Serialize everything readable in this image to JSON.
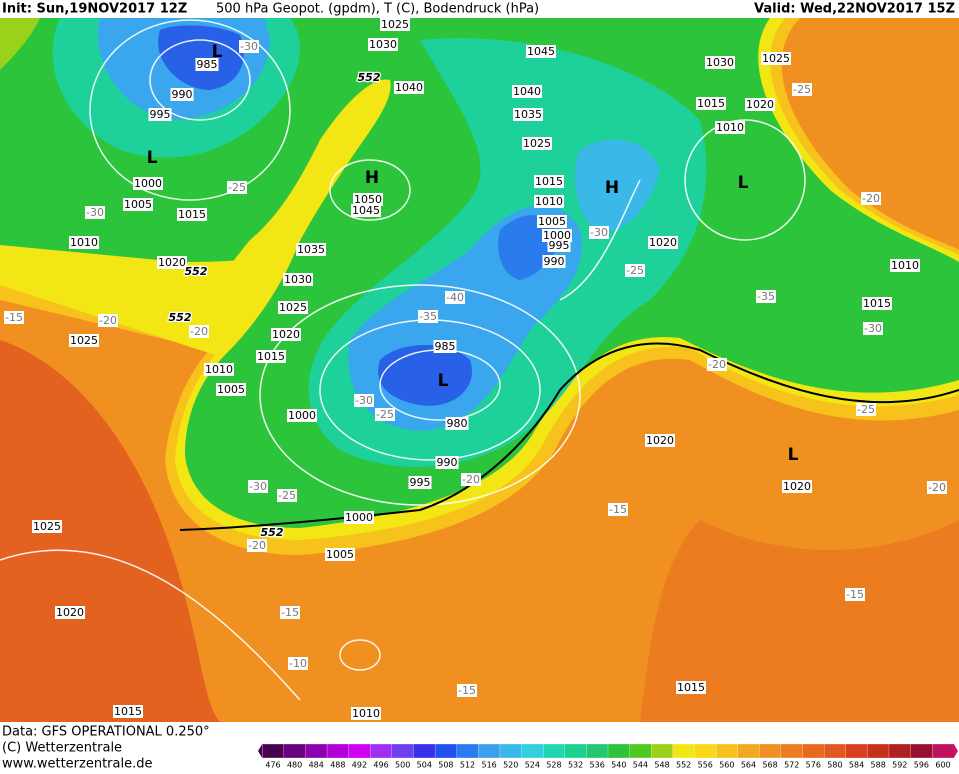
{
  "header": {
    "init": "Init: Sun,19NOV2017 12Z",
    "title": "500 hPa Geopot. (gpdm), T (C), Bodendruck (hPa)",
    "valid": "Valid: Wed,22NOV2017 15Z"
  },
  "map": {
    "isobar_labels": [
      1025,
      1030,
      985,
      990,
      995,
      1000,
      1005,
      1015,
      1010,
      1020,
      1025,
      1035,
      1030,
      1025,
      1020,
      1015,
      1010,
      1005,
      1000,
      1050,
      1045,
      1040,
      1045,
      1040,
      1035,
      1025,
      1030,
      1025,
      1015,
      1020,
      1010,
      1015,
      1010,
      1005,
      1000,
      995,
      990,
      1020,
      1010,
      1015,
      985,
      980,
      990,
      995,
      1000,
      1005,
      1020,
      1020,
      1025,
      1020,
      1015,
      1010,
      1015
    ],
    "geopotential_labels": [
      552,
      552,
      552,
      552
    ],
    "temperature_labels": [
      -30,
      -25,
      -25,
      -30,
      -20,
      -30,
      -25,
      -40,
      -35,
      -35,
      -30,
      -20,
      -15,
      -20,
      -20,
      -25,
      -30,
      -25,
      -20,
      -30,
      -25,
      -20,
      -15,
      -20,
      -15,
      -15,
      -10,
      -15
    ],
    "pressure_centers": [
      "L",
      "L",
      "H",
      "H",
      "L",
      "L",
      "L"
    ]
  },
  "footer": {
    "data": "Data: GFS OPERATIONAL 0.250°",
    "copyright": "(C) Wetterzentrale",
    "url": "www.wetterzentrale.de"
  },
  "colorbar": {
    "labels": [
      476,
      480,
      484,
      488,
      492,
      496,
      500,
      504,
      508,
      512,
      516,
      520,
      524,
      528,
      532,
      536,
      540,
      544,
      548,
      552,
      556,
      560,
      564,
      568,
      572,
      576,
      580,
      584,
      588,
      592,
      596,
      600
    ]
  }
}
